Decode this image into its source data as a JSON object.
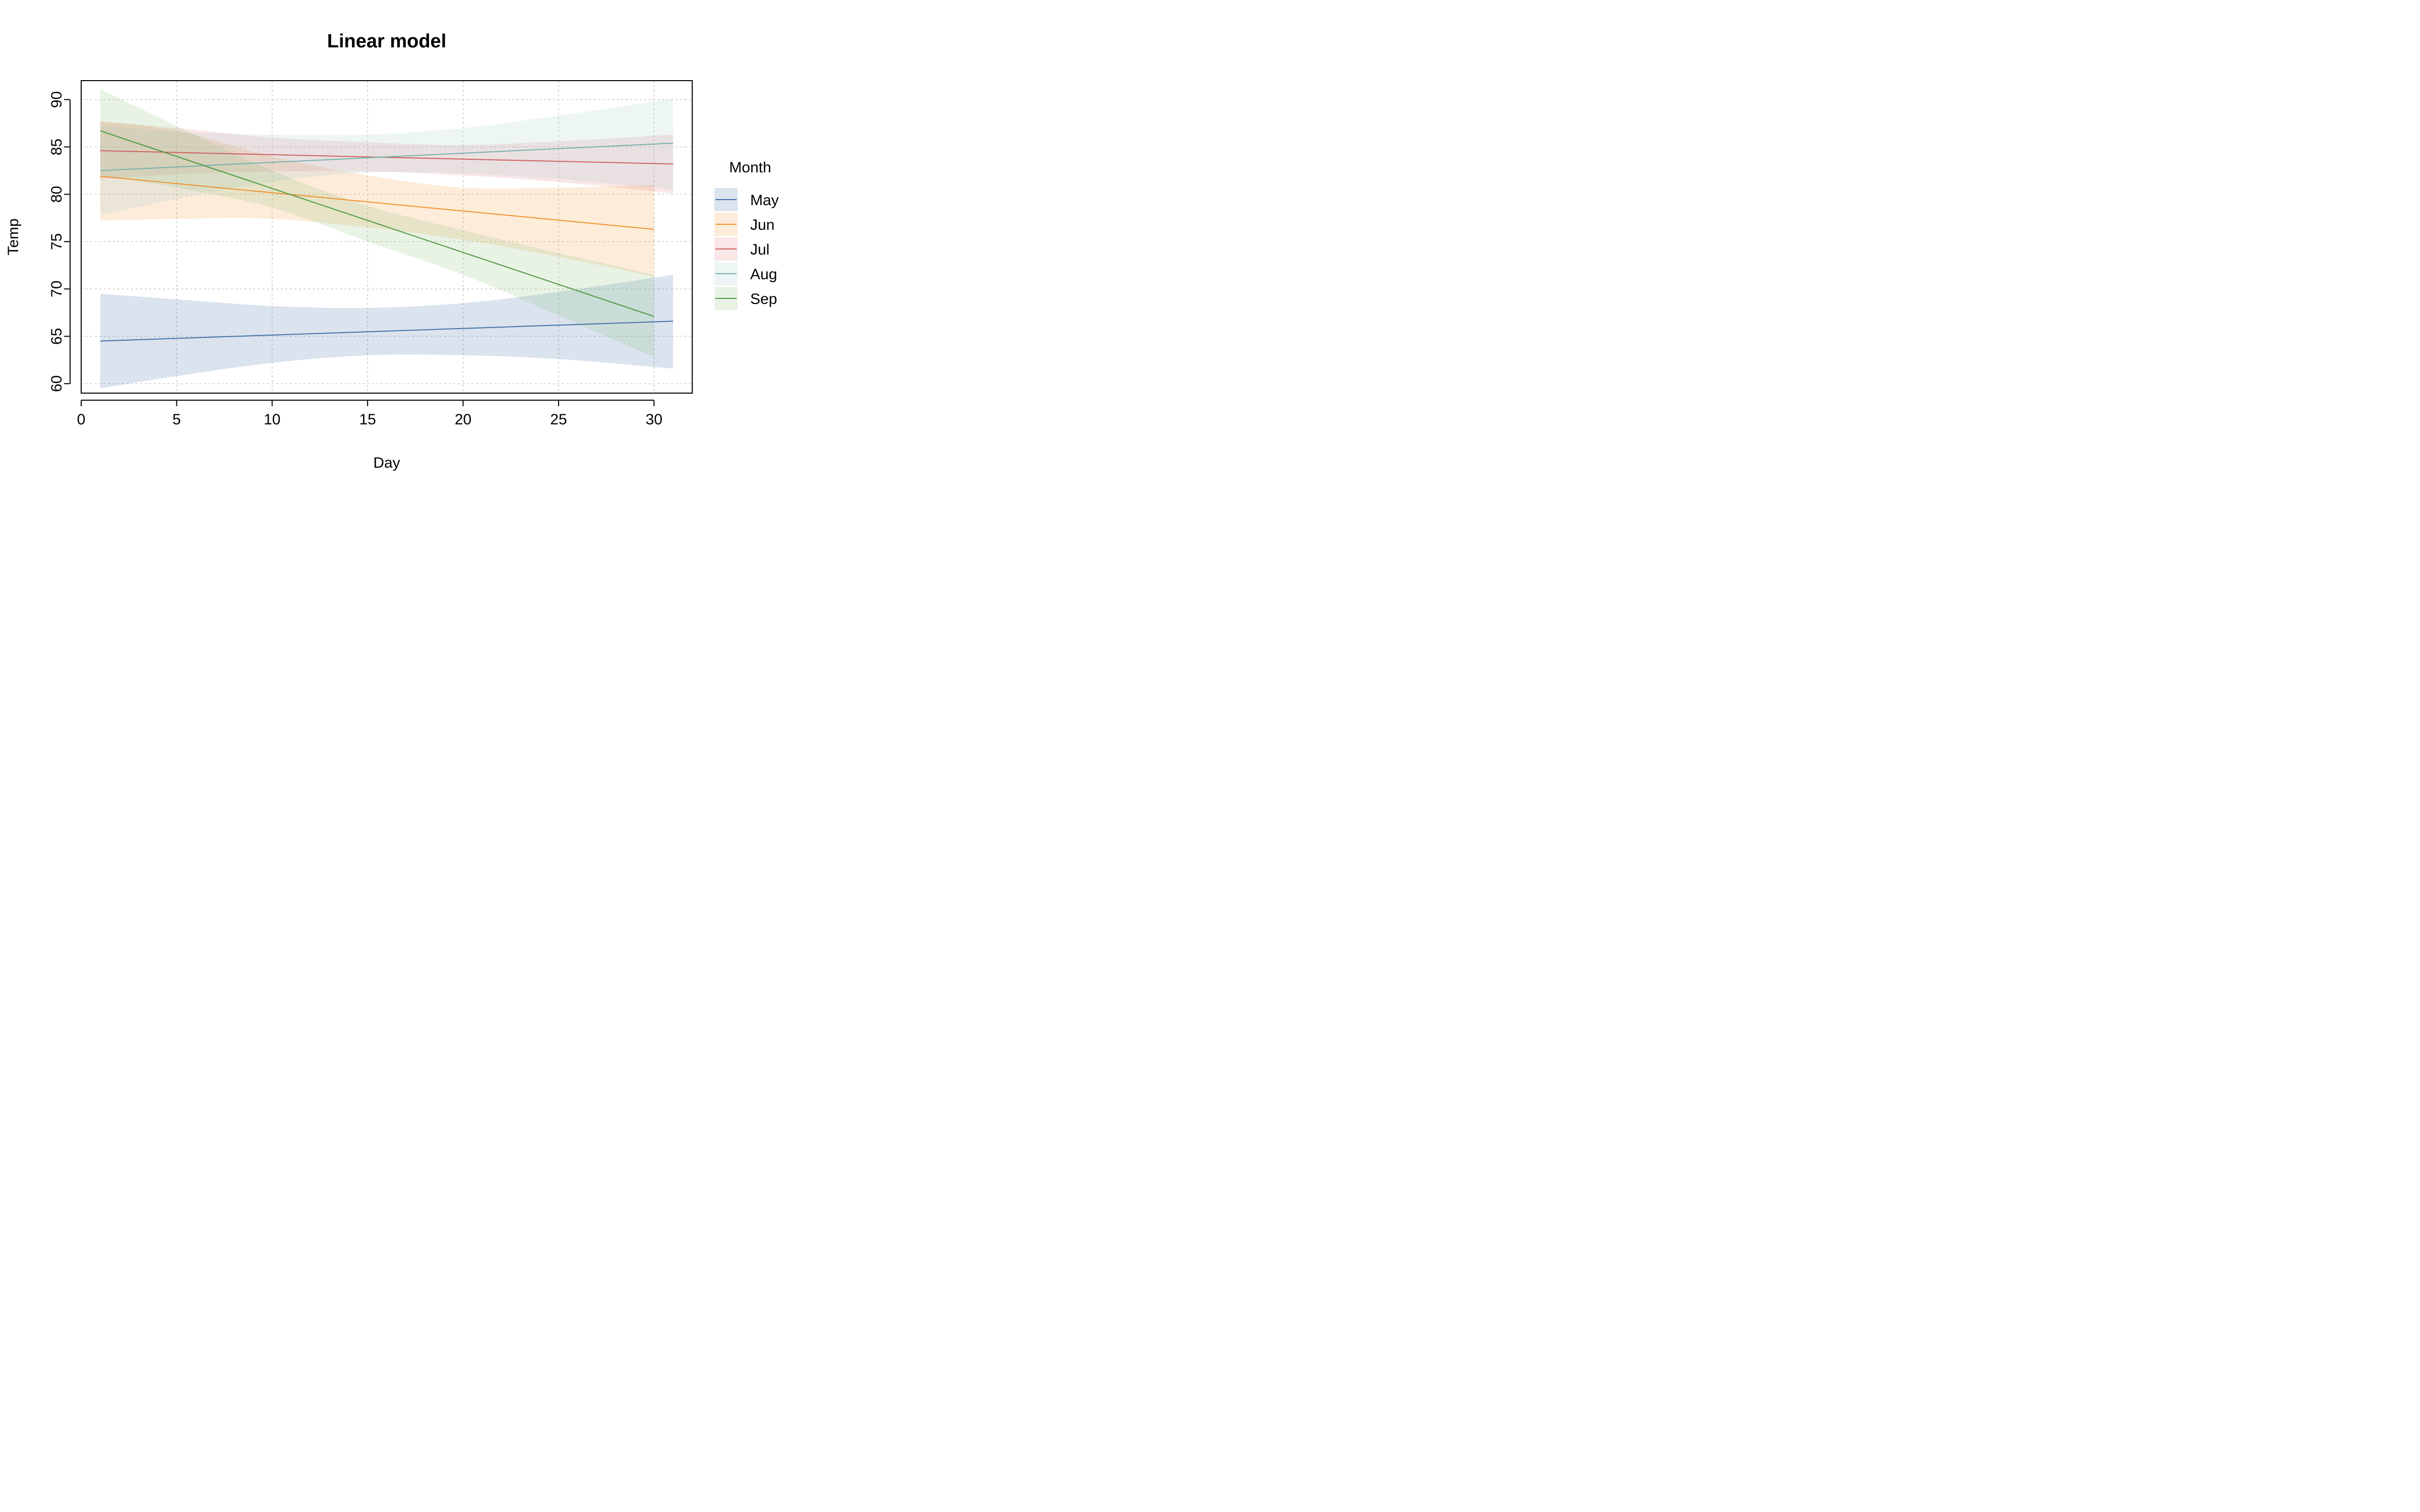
{
  "chart_data": {
    "type": "line",
    "title": "Linear model",
    "xlabel": "Day",
    "ylabel": "Temp",
    "xlim": [
      0,
      32
    ],
    "ylim": [
      59,
      92
    ],
    "xticks": [
      0,
      5,
      10,
      15,
      20,
      25,
      30
    ],
    "yticks": [
      60,
      65,
      70,
      75,
      80,
      85,
      90
    ],
    "grid": true,
    "legend": {
      "title": "Month",
      "placement": "right"
    },
    "series": [
      {
        "name": "May",
        "color": "#4472a8",
        "band_color": "#4472a8",
        "x_range": [
          1,
          31
        ],
        "fit": [
          [
            1,
            64.5
          ],
          [
            31,
            66.6
          ]
        ],
        "lower": [
          [
            1,
            59.5
          ],
          [
            5,
            60.8
          ],
          [
            10,
            62.2
          ],
          [
            15,
            63.0
          ],
          [
            20,
            63.0
          ],
          [
            25,
            62.6
          ],
          [
            31,
            61.6
          ]
        ],
        "upper": [
          [
            1,
            69.5
          ],
          [
            5,
            68.9
          ],
          [
            10,
            68.2
          ],
          [
            15,
            68.0
          ],
          [
            20,
            68.5
          ],
          [
            25,
            69.7
          ],
          [
            31,
            71.5
          ]
        ]
      },
      {
        "name": "Jun",
        "color": "#f0912c",
        "band_color": "#f7a044",
        "x_range": [
          1,
          30
        ],
        "fit": [
          [
            1,
            81.9
          ],
          [
            30,
            76.3
          ]
        ],
        "lower": [
          [
            1,
            77.2
          ],
          [
            5,
            77.4
          ],
          [
            10,
            77.4
          ],
          [
            15,
            76.5
          ],
          [
            20,
            75.2
          ],
          [
            25,
            73.4
          ],
          [
            30,
            71.3
          ]
        ],
        "upper": [
          [
            1,
            87.7
          ],
          [
            5,
            86.7
          ],
          [
            10,
            84.0
          ],
          [
            15,
            82.0
          ],
          [
            20,
            80.7
          ],
          [
            25,
            80.7
          ],
          [
            30,
            81.0
          ]
        ]
      },
      {
        "name": "Jul",
        "color": "#d05f5f",
        "band_color": "#e88080",
        "x_range": [
          1,
          31
        ],
        "fit": [
          [
            1,
            84.6
          ],
          [
            31,
            83.2
          ]
        ],
        "lower": [
          [
            1,
            81.6
          ],
          [
            5,
            82.1
          ],
          [
            10,
            82.4
          ],
          [
            15,
            82.4
          ],
          [
            20,
            82.0
          ],
          [
            25,
            81.3
          ],
          [
            31,
            80.1
          ]
        ],
        "upper": [
          [
            1,
            87.7
          ],
          [
            5,
            87.0
          ],
          [
            10,
            86.0
          ],
          [
            15,
            85.5
          ],
          [
            20,
            85.2
          ],
          [
            25,
            85.6
          ],
          [
            31,
            86.3
          ]
        ]
      },
      {
        "name": "Aug",
        "color": "#76b2ad",
        "band_color": "#a3cfcc",
        "x_range": [
          1,
          31
        ],
        "fit": [
          [
            1,
            82.5
          ],
          [
            31,
            85.4
          ]
        ],
        "lower": [
          [
            1,
            77.8
          ],
          [
            5,
            79.5
          ],
          [
            10,
            81.3
          ],
          [
            15,
            82.3
          ],
          [
            20,
            82.2
          ],
          [
            25,
            81.6
          ],
          [
            31,
            80.5
          ]
        ],
        "upper": [
          [
            1,
            87.3
          ],
          [
            5,
            86.6
          ],
          [
            10,
            86.3
          ],
          [
            15,
            86.3
          ],
          [
            20,
            87.0
          ],
          [
            25,
            88.3
          ],
          [
            31,
            90.1
          ]
        ]
      },
      {
        "name": "Sep",
        "color": "#4e9a3e",
        "band_color": "#8cc47e",
        "x_range": [
          1,
          30
        ],
        "fit": [
          [
            1,
            86.7
          ],
          [
            30,
            67.1
          ]
        ],
        "lower": [
          [
            1,
            82.0
          ],
          [
            5,
            80.7
          ],
          [
            10,
            78.6
          ],
          [
            15,
            75.0
          ],
          [
            20,
            71.5
          ],
          [
            25,
            67.2
          ],
          [
            30,
            62.8
          ]
        ],
        "upper": [
          [
            1,
            91.1
          ],
          [
            5,
            87.2
          ],
          [
            10,
            82.5
          ],
          [
            15,
            78.8
          ],
          [
            20,
            76.2
          ],
          [
            25,
            73.8
          ],
          [
            30,
            71.5
          ]
        ]
      }
    ]
  }
}
